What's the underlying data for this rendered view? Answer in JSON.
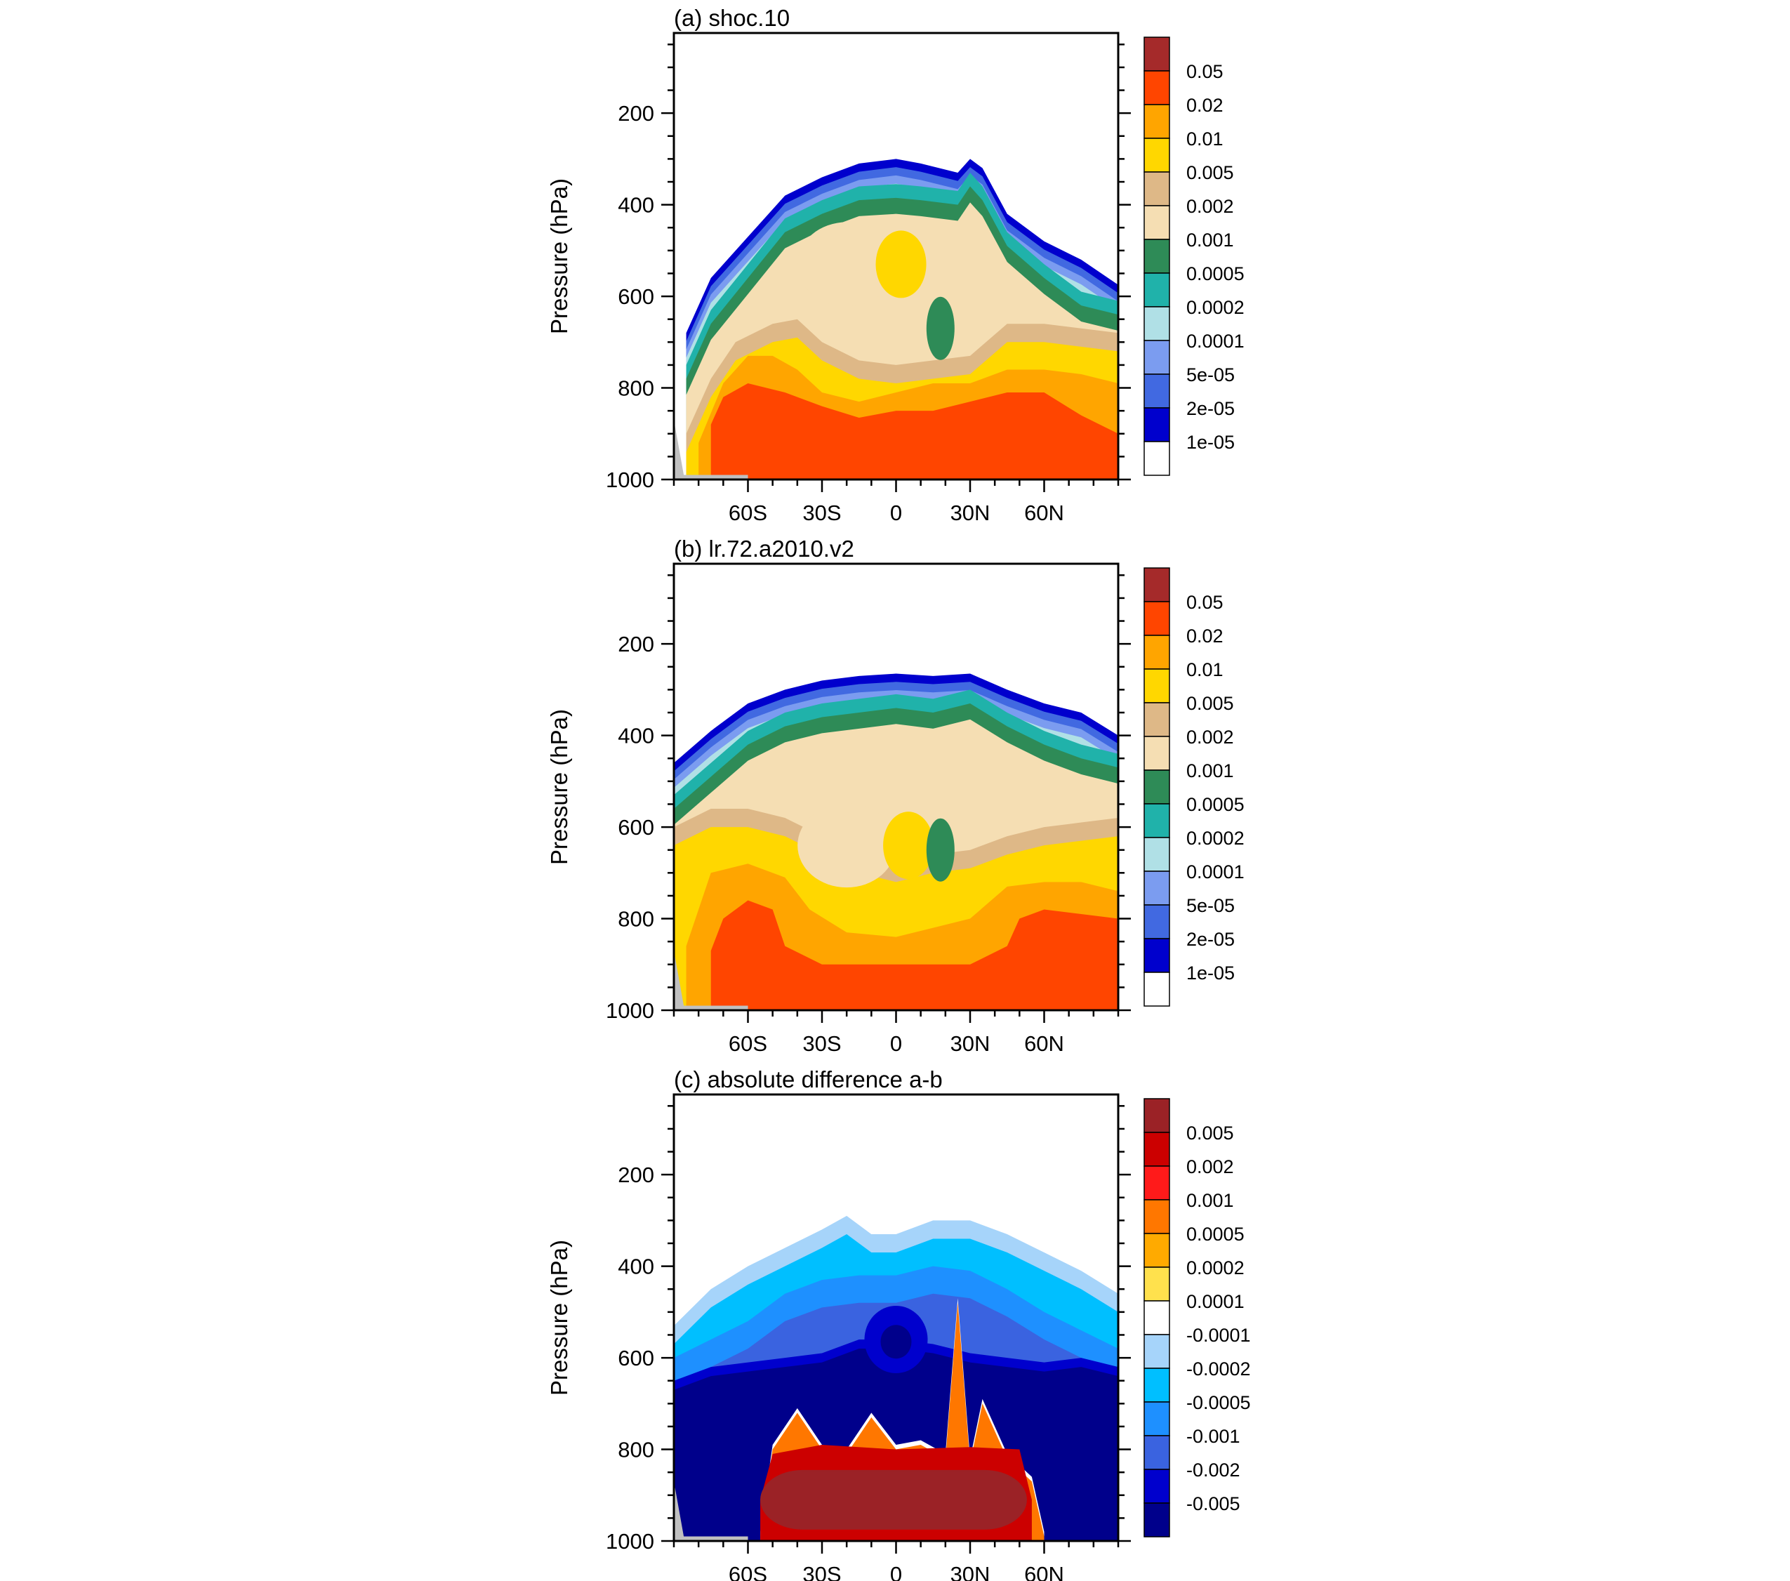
{
  "figure": {
    "background": "#ffffff",
    "gray_fill": "#c0c0c0"
  },
  "chart_data": [
    {
      "type": "heatmap",
      "title": "(a) shoc.10",
      "ylabel": "Pressure (hPa)",
      "xlabel": "",
      "x_ticklabels": [
        "60S",
        "30S",
        "0",
        "30N",
        "60N"
      ],
      "x_tickvalues": [
        -60,
        -30,
        0,
        30,
        60
      ],
      "xlim": [
        -90,
        90
      ],
      "y_ticklabels": [
        "200",
        "400",
        "600",
        "800",
        "1000"
      ],
      "y_tickvalues": [
        200,
        400,
        600,
        800,
        1000
      ],
      "ylim": [
        1000,
        25
      ],
      "y_reversed": true,
      "grid": false,
      "legend_position": "right",
      "colorbar": {
        "labels": [
          "0.05",
          "0.02",
          "0.01",
          "0.005",
          "0.002",
          "0.001",
          "0.0005",
          "0.0002",
          "0.0001",
          "5e-05",
          "2e-05",
          "1e-05"
        ],
        "colors": [
          "#a52a2a",
          "#ff4500",
          "#ffa500",
          "#ffd700",
          "#deb887",
          "#f5deb3",
          "#2e8b57",
          "#20b2aa",
          "#b0e0e6",
          "#7b9cf0",
          "#4169e1",
          "#0000cd",
          "#ffffff"
        ]
      },
      "fields": {
        "top": [
          -85,
          680,
          -75,
          560,
          -60,
          470,
          -45,
          380,
          -30,
          340,
          -15,
          310,
          0,
          300,
          10,
          310,
          25,
          330,
          30,
          300,
          35,
          320,
          45,
          420,
          60,
          480,
          75,
          520,
          90,
          575
        ],
        "green_top": [
          -85,
          780,
          -75,
          660,
          -60,
          560,
          -45,
          460,
          -30,
          420,
          -15,
          390,
          0,
          385,
          10,
          390,
          25,
          400,
          30,
          360,
          35,
          390,
          45,
          490,
          60,
          560,
          75,
          620,
          90,
          640
        ],
        "yellow_top": [
          -85,
          940,
          -75,
          820,
          -65,
          740,
          -50,
          700,
          -40,
          690,
          -30,
          740,
          -15,
          780,
          0,
          790,
          15,
          780,
          30,
          770,
          45,
          700,
          60,
          700,
          75,
          710,
          90,
          720
        ],
        "orange_top": [
          -80,
          920,
          -70,
          790,
          -60,
          730,
          -50,
          730,
          -40,
          760,
          -30,
          810,
          -15,
          830,
          0,
          810,
          15,
          790,
          30,
          790,
          45,
          760,
          60,
          760,
          75,
          770,
          90,
          790
        ],
        "red_top": [
          -75,
          880,
          -70,
          820,
          -60,
          790,
          -45,
          810,
          -30,
          840,
          -15,
          865,
          0,
          850,
          15,
          850,
          30,
          830,
          45,
          810,
          60,
          810,
          75,
          860,
          90,
          900
        ],
        "bottom_band": [
          -85,
          1000,
          90,
          1000
        ]
      }
    },
    {
      "type": "heatmap",
      "title": "(b) lr.72.a2010.v2",
      "ylabel": "Pressure (hPa)",
      "xlabel": "",
      "x_ticklabels": [
        "60S",
        "30S",
        "0",
        "30N",
        "60N"
      ],
      "x_tickvalues": [
        -60,
        -30,
        0,
        30,
        60
      ],
      "xlim": [
        -90,
        90
      ],
      "y_ticklabels": [
        "200",
        "400",
        "600",
        "800",
        "1000"
      ],
      "y_tickvalues": [
        200,
        400,
        600,
        800,
        1000
      ],
      "ylim": [
        1000,
        25
      ],
      "y_reversed": true,
      "grid": false,
      "legend_position": "right",
      "colorbar": {
        "labels": [
          "0.05",
          "0.02",
          "0.01",
          "0.005",
          "0.002",
          "0.001",
          "0.0005",
          "0.0002",
          "0.0001",
          "5e-05",
          "2e-05",
          "1e-05"
        ],
        "colors": [
          "#a52a2a",
          "#ff4500",
          "#ffa500",
          "#ffd700",
          "#deb887",
          "#f5deb3",
          "#2e8b57",
          "#20b2aa",
          "#b0e0e6",
          "#7b9cf0",
          "#4169e1",
          "#0000cd",
          "#ffffff"
        ]
      },
      "fields": {
        "top": [
          -90,
          460,
          -75,
          390,
          -60,
          330,
          -45,
          300,
          -30,
          280,
          -15,
          270,
          0,
          265,
          15,
          270,
          30,
          265,
          45,
          300,
          60,
          330,
          75,
          350,
          90,
          400
        ],
        "green_top": [
          -90,
          560,
          -75,
          490,
          -60,
          420,
          -45,
          380,
          -30,
          360,
          -15,
          350,
          0,
          340,
          15,
          350,
          30,
          330,
          45,
          380,
          60,
          420,
          75,
          450,
          90,
          470
        ],
        "yellow_top": [
          -90,
          640,
          -75,
          600,
          -60,
          600,
          -45,
          620,
          -30,
          660,
          -15,
          700,
          0,
          720,
          15,
          700,
          30,
          690,
          45,
          660,
          60,
          640,
          75,
          630,
          90,
          620
        ],
        "orange_top": [
          -85,
          860,
          -75,
          700,
          -60,
          680,
          -45,
          710,
          -35,
          780,
          -20,
          830,
          0,
          840,
          15,
          820,
          30,
          800,
          45,
          730,
          60,
          720,
          75,
          720,
          90,
          740
        ],
        "red_top": [
          -75,
          870,
          -70,
          800,
          -60,
          760,
          -50,
          780,
          -45,
          860,
          -30,
          900,
          0,
          900,
          30,
          900,
          45,
          860,
          50,
          800,
          60,
          780,
          75,
          790,
          90,
          800
        ],
        "bottom_band": [
          -85,
          1000,
          90,
          1000
        ]
      }
    },
    {
      "type": "heatmap",
      "title": "(c) absolute difference a-b",
      "ylabel": "Pressure (hPa)",
      "xlabel": "",
      "x_ticklabels": [
        "60S",
        "30S",
        "0",
        "30N",
        "60N"
      ],
      "x_tickvalues": [
        -60,
        -30,
        0,
        30,
        60
      ],
      "xlim": [
        -90,
        90
      ],
      "y_ticklabels": [
        "200",
        "400",
        "600",
        "800",
        "1000"
      ],
      "y_tickvalues": [
        200,
        400,
        600,
        800,
        1000
      ],
      "ylim": [
        1000,
        25
      ],
      "y_reversed": true,
      "grid": false,
      "legend_position": "right",
      "colorbar": {
        "labels": [
          "0.005",
          "0.002",
          "0.001",
          "0.0005",
          "0.0002",
          "0.0001",
          "-0.0001",
          "-0.0002",
          "-0.0005",
          "-0.001",
          "-0.002",
          "-0.005"
        ],
        "colors": [
          "#9b2226",
          "#cc0000",
          "#ff1a1a",
          "#ff7700",
          "#ffaa00",
          "#ffe14d",
          "#ffffff",
          "#a6d4fa",
          "#00bfff",
          "#1e90ff",
          "#3a63e0",
          "#0000cd",
          "#00008b"
        ]
      },
      "fields": {
        "top": [
          -90,
          530,
          -75,
          450,
          -60,
          400,
          -45,
          360,
          -30,
          320,
          -20,
          290,
          -10,
          330,
          0,
          330,
          15,
          300,
          30,
          300,
          45,
          330,
          60,
          370,
          75,
          410,
          90,
          460
        ],
        "green_top": [
          -90,
          600,
          -75,
          560,
          -60,
          520,
          -45,
          460,
          -30,
          430,
          -15,
          420,
          0,
          420,
          15,
          400,
          30,
          410,
          45,
          450,
          60,
          500,
          75,
          540,
          90,
          580
        ],
        "yellow_top": [
          -90,
          650,
          -75,
          620,
          -60,
          610,
          -45,
          600,
          -30,
          590,
          -15,
          560,
          0,
          560,
          15,
          570,
          30,
          590,
          45,
          600,
          60,
          610,
          75,
          600,
          90,
          620
        ],
        "orange_top": [
          -55,
          990,
          -50,
          800,
          -40,
          720,
          -30,
          800,
          -20,
          810,
          -10,
          730,
          0,
          800,
          10,
          790,
          20,
          820,
          25,
          480,
          30,
          830,
          35,
          700,
          45,
          820,
          55,
          870,
          60,
          990
        ],
        "red_top": [
          -55,
          950,
          -50,
          850,
          -30,
          830,
          0,
          840,
          30,
          835,
          50,
          840,
          55,
          950
        ],
        "bottom_band": [
          -85,
          1000,
          90,
          1000
        ]
      }
    }
  ]
}
